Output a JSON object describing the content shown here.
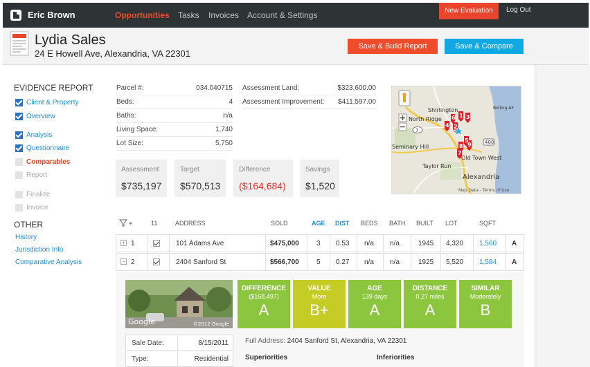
{
  "topbar": {
    "user_name": "Eric Brown",
    "nav": [
      "Opportunities",
      "Tasks",
      "Invoices",
      "Account & Settings"
    ],
    "new_evaluation": "New Evaluation",
    "logout": "Log Out"
  },
  "header": {
    "client_name": "Lydia Sales",
    "client_address": "24 E Howell Ave, Alexandria, VA 22301",
    "save_build_report": "Save & Build Report",
    "save_compare": "Save & Compare"
  },
  "sidebar": {
    "evidence_title": "EVIDENCE REPORT",
    "evidence_items": [
      {
        "label": "Client & Property",
        "state": "checked"
      },
      {
        "label": "Overview",
        "state": "checked"
      },
      {
        "label": "Analysis",
        "state": "checked"
      },
      {
        "label": "Questionnaire",
        "state": "checked"
      },
      {
        "label": "Comparables",
        "state": "current"
      },
      {
        "label": "Report",
        "state": "disabled"
      },
      {
        "label": "Finalize",
        "state": "disabled"
      },
      {
        "label": "Invoice",
        "state": "disabled"
      }
    ],
    "other_title": "OTHER",
    "other_links": [
      "History",
      "Jurisdiction Info",
      "Comparative Analysis"
    ]
  },
  "parcel": [
    {
      "label": "Parcel #:",
      "value": "034.040715"
    },
    {
      "label": "Beds:",
      "value": "4"
    },
    {
      "label": "Baths:",
      "value": "n/a"
    },
    {
      "label": "Living Space:",
      "value": "1,740"
    },
    {
      "label": "Lot Size:",
      "value": "5,750"
    }
  ],
  "assessment": [
    {
      "label": "Assessment Land:",
      "value": "$323,600.00"
    },
    {
      "label": "Assessment Improvement:",
      "value": "$411,597.00"
    }
  ],
  "stats": [
    {
      "label": "Assessment",
      "value": "$735,197"
    },
    {
      "label": "Target",
      "value": "$570,513"
    },
    {
      "label": "Difference",
      "value": "($164,684)"
    },
    {
      "label": "Savings",
      "value": "$1,520"
    }
  ],
  "map": {
    "labels": [
      "Shirlington",
      "North Ridge",
      "Seminary Hill",
      "Taylor Run",
      "Alexandria",
      "Old Town West",
      "Bolling AF"
    ],
    "markers": [
      "1",
      "2",
      "3",
      "4",
      "5",
      "6",
      "7",
      "8",
      "9"
    ],
    "road_400": "400",
    "road_7": "7",
    "attribution": "Map Data - Terms of Use"
  },
  "table": {
    "count": "11",
    "headers": [
      "ADDRESS",
      "SOLD",
      "AGE",
      "DIST",
      "BEDS",
      "BATH",
      "BUILT",
      "LOT",
      "SQFT"
    ],
    "rows": [
      {
        "toggle": "+",
        "num": "1",
        "address": "101 Adams Ave",
        "sold": "$475,000",
        "age": "3",
        "dist": "0.53",
        "beds": "n/a",
        "bath": "n/a",
        "built": "1945",
        "lot": "4,320",
        "sqft": "1,560",
        "grade": "A"
      },
      {
        "toggle": "−",
        "num": "2",
        "address": "2404 Sanford St",
        "sold": "$566,700",
        "age": "5",
        "dist": "0.27",
        "beds": "n/a",
        "bath": "n/a",
        "built": "1925",
        "lot": "5,520",
        "sqft": "1,584",
        "grade": "A"
      }
    ]
  },
  "detail": {
    "photo_credit": "©2012 Google",
    "grades": [
      {
        "title": "DIFFERENCE",
        "sub": "($168,497)",
        "grade": "A",
        "color": "#8cc63f"
      },
      {
        "title": "VALUE",
        "sub": "More",
        "grade": "B+",
        "color": "#c5cc26"
      },
      {
        "title": "AGE",
        "sub": "139 days",
        "grade": "A",
        "color": "#8cc63f"
      },
      {
        "title": "DISTANCE",
        "sub": "0.27 miles",
        "grade": "A",
        "color": "#8cc63f"
      },
      {
        "title": "SIMILAR",
        "sub": "Moderately",
        "grade": "B",
        "color": "#8cc63f"
      }
    ],
    "sale_rows": [
      {
        "label": "Sale Date:",
        "value": "8/15/2011"
      },
      {
        "label": "Type:",
        "value": "Residential"
      }
    ],
    "full_address_label": "Full Address:",
    "full_address": "2404 Sanford St, Alexandria, VA 22301",
    "superiorities": "Superiorities",
    "inferiorities": "Inferiorities"
  }
}
